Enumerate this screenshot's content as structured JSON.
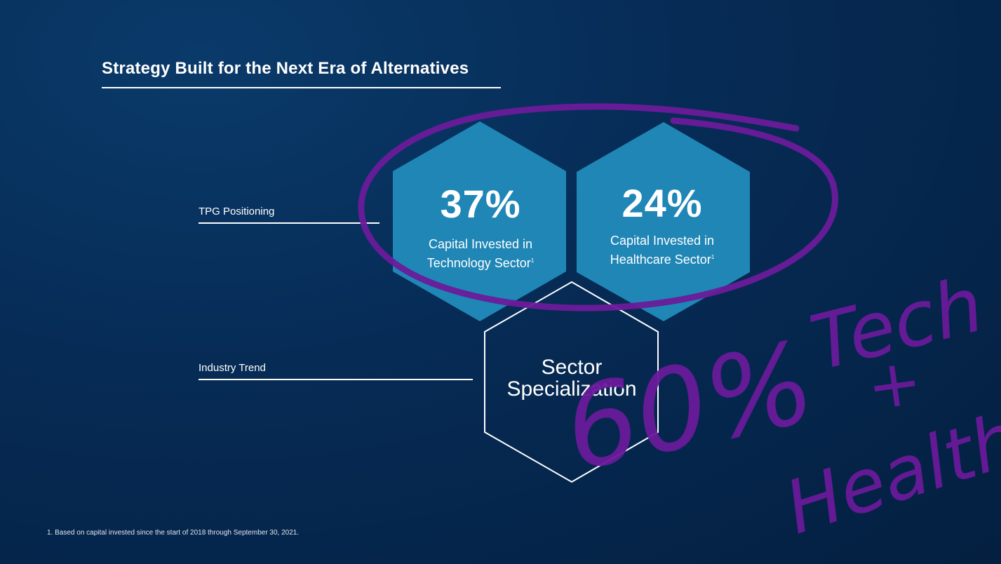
{
  "slide": {
    "title": "Strategy Built for the Next Era of Alternatives",
    "rows": {
      "tpg_label": "TPG Positioning",
      "industry_label": "Industry Trend"
    },
    "hexagons": [
      {
        "value": "37%",
        "caption_line1": "Capital Invested in",
        "caption_line2": "Technology Sector",
        "footnote_mark": "1"
      },
      {
        "value": "24%",
        "caption_line1": "Capital Invested in",
        "caption_line2": "Healthcare Sector",
        "footnote_mark": "1"
      }
    ],
    "center_hex": {
      "line1": "Sector",
      "line2": "Specialization"
    },
    "footnote": "1. Based on capital invested since the start of 2018 through September 30, 2021."
  },
  "annotation": {
    "handwriting_line1": "60%",
    "handwriting_line2": "Tech",
    "handwriting_line3": "+",
    "handwriting_line4": "Health",
    "ink_color": "#6a1b9a"
  },
  "colors": {
    "background": "#062b55",
    "hex_fill": "#1f86b6",
    "outline": "#ffffff"
  }
}
